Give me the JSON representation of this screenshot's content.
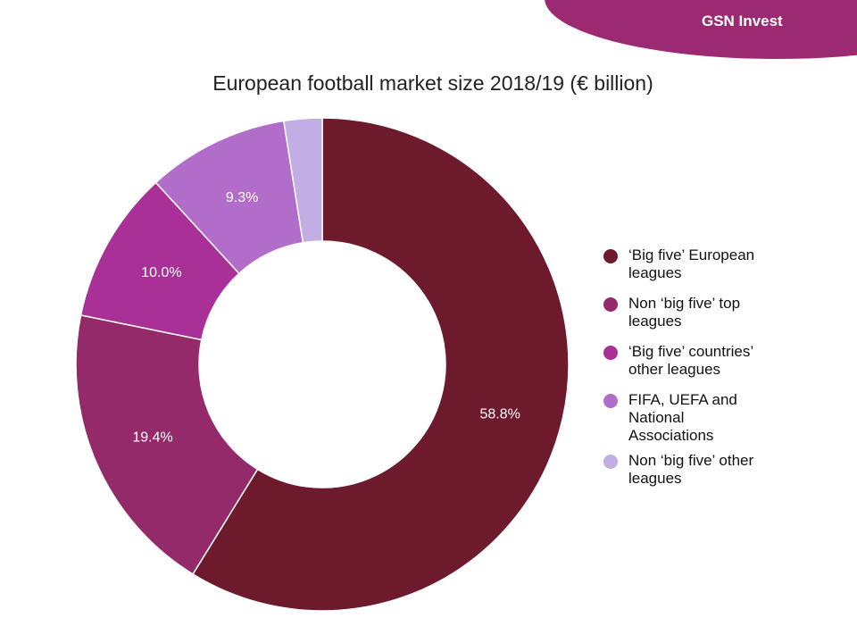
{
  "brand": {
    "name": "GSN Invest",
    "color": "#9b2a72"
  },
  "chart_data": {
    "type": "pie",
    "variant": "donut",
    "title": "European football market size 2018/19 (€ billion)",
    "legend_position": "right",
    "slices": [
      {
        "name": "‘Big five’ European leagues",
        "legend_lines": [
          "‘Big five’ European",
          "leagues"
        ],
        "value": 58.8,
        "label": "58.8%",
        "color": "#6d1b2c"
      },
      {
        "name": "Non ‘big five’ top leagues",
        "legend_lines": [
          "Non ‘big five’ top",
          "leagues"
        ],
        "value": 19.4,
        "label": "19.4%",
        "color": "#952a6b"
      },
      {
        "name": "‘Big five’ countries’ other leagues",
        "legend_lines": [
          "‘Big five’ countries’",
          "other leagues"
        ],
        "value": 10.0,
        "label": "10.0%",
        "color": "#a83097"
      },
      {
        "name": "FIFA, UEFA and National Associations",
        "legend_lines": [
          "FIFA, UEFA and",
          "National",
          "Associations"
        ],
        "value": 9.3,
        "label": "9.3%",
        "color": "#b26cca"
      },
      {
        "name": "Non ‘big five’ other leagues",
        "legend_lines": [
          "Non ‘big five’ other",
          "leagues"
        ],
        "value": 2.5,
        "label": "",
        "color": "#c2ade4"
      }
    ]
  }
}
